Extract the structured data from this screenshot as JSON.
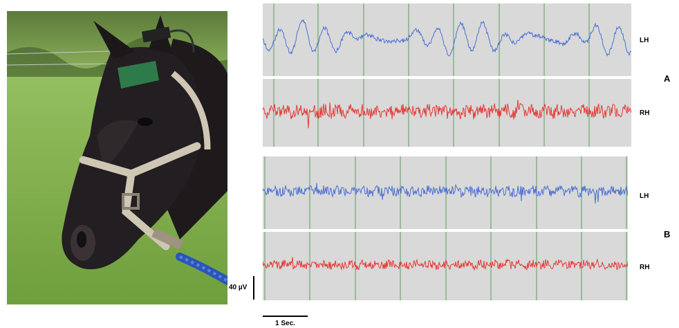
{
  "figure": {
    "panels": [
      {
        "id": "A",
        "letter": "A",
        "traces": [
          {
            "channel": "LH",
            "color": "#4a6fd4"
          },
          {
            "channel": "RH",
            "color": "#e53935"
          }
        ]
      },
      {
        "id": "B",
        "letter": "B",
        "traces": [
          {
            "channel": "LH",
            "color": "#4a6fd4"
          },
          {
            "channel": "RH",
            "color": "#e53935"
          }
        ]
      }
    ],
    "scale_bars": {
      "amplitude": "40 µV",
      "time": "1 Sec."
    },
    "grid_color": "#5a9a5a"
  }
}
